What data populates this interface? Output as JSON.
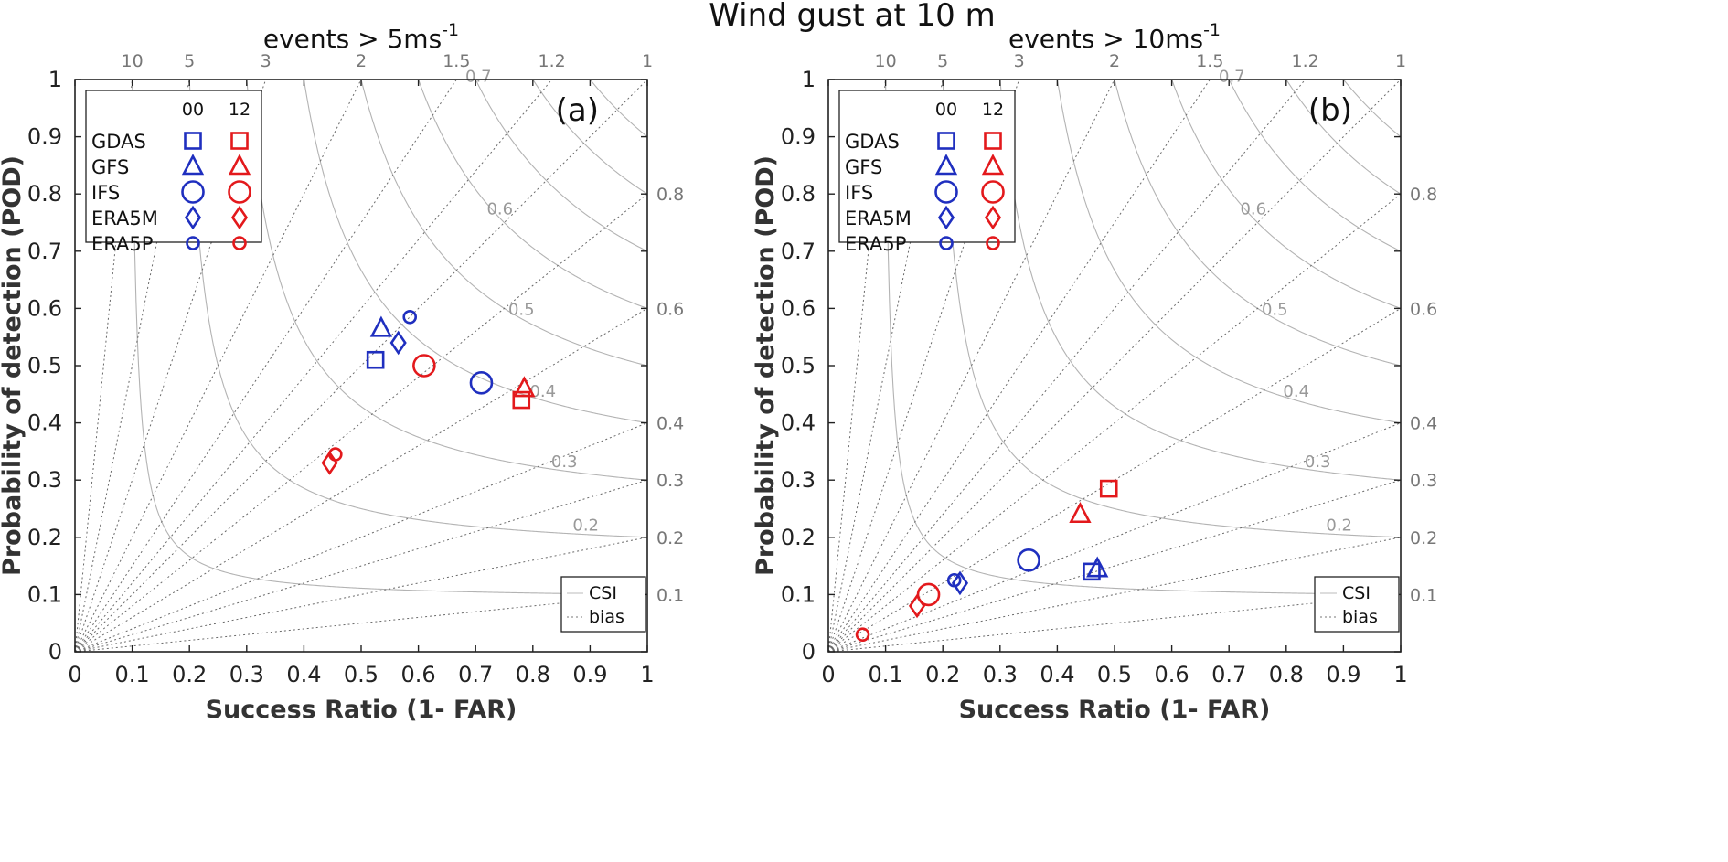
{
  "title": "Wind gust at 10 m",
  "colors": {
    "run00": "#1f2fbf",
    "run12": "#e3191c",
    "grid": "#9a9a9a"
  },
  "legend": {
    "col_headers": [
      "00",
      "12"
    ],
    "models": [
      {
        "name": "GDAS",
        "marker": "square"
      },
      {
        "name": "GFS",
        "marker": "triangle"
      },
      {
        "name": "IFS",
        "marker": "circle-large"
      },
      {
        "name": "ERA5M",
        "marker": "diamond"
      },
      {
        "name": "ERA5P",
        "marker": "circle-small"
      }
    ],
    "lines": [
      "CSI",
      "bias"
    ]
  },
  "chart_data": [
    {
      "type": "scatter",
      "panel_label": "(a)",
      "top_label": "events  > 5ms-1",
      "xlabel": "Success Ratio (1- FAR)",
      "ylabel": "Probability of detection (POD)",
      "xlim": [
        0,
        1
      ],
      "ylim": [
        0,
        1
      ],
      "xticks": [
        "0",
        "0.1",
        "0.2",
        "0.3",
        "0.4",
        "0.5",
        "0.6",
        "0.7",
        "0.8",
        "0.9",
        "1"
      ],
      "yticks": [
        "0",
        "0.1",
        "0.2",
        "0.3",
        "0.4",
        "0.5",
        "0.6",
        "0.7",
        "0.8",
        "0.9",
        "1"
      ],
      "bias_lines": [
        0.1,
        0.2,
        0.3,
        0.4,
        0.6,
        0.8,
        1,
        1.2,
        1.5,
        2,
        3,
        5,
        10
      ],
      "bias_top_labels": [
        "10",
        "5",
        "3",
        "2",
        "1.5",
        "1.2",
        "1"
      ],
      "bias_right_labels": [
        "0.8",
        "0.6",
        "0.4",
        "0.3",
        "0.2",
        "0.1"
      ],
      "csi_contours": [
        0.1,
        0.2,
        0.3,
        0.4,
        0.5,
        0.6,
        0.7,
        0.8,
        0.9
      ],
      "series": [
        {
          "name": "GDAS 00",
          "marker": "square",
          "run": "00",
          "x": 0.525,
          "y": 0.51
        },
        {
          "name": "GFS 00",
          "marker": "triangle",
          "run": "00",
          "x": 0.535,
          "y": 0.565
        },
        {
          "name": "IFS 00",
          "marker": "circle-large",
          "run": "00",
          "x": 0.71,
          "y": 0.47
        },
        {
          "name": "ERA5M 00",
          "marker": "diamond",
          "run": "00",
          "x": 0.565,
          "y": 0.54
        },
        {
          "name": "ERA5P 00",
          "marker": "circle-small",
          "run": "00",
          "x": 0.585,
          "y": 0.585
        },
        {
          "name": "GDAS 12",
          "marker": "square",
          "run": "12",
          "x": 0.78,
          "y": 0.44
        },
        {
          "name": "GFS 12",
          "marker": "triangle",
          "run": "12",
          "x": 0.785,
          "y": 0.46
        },
        {
          "name": "IFS 12",
          "marker": "circle-large",
          "run": "12",
          "x": 0.61,
          "y": 0.5
        },
        {
          "name": "ERA5M 12",
          "marker": "diamond",
          "run": "12",
          "x": 0.445,
          "y": 0.33
        },
        {
          "name": "ERA5P 12",
          "marker": "circle-small",
          "run": "12",
          "x": 0.455,
          "y": 0.345
        }
      ]
    },
    {
      "type": "scatter",
      "panel_label": "(b)",
      "top_label": "events  > 10ms-1",
      "xlabel": "Success Ratio (1- FAR)",
      "ylabel": "Probability of detection (POD)",
      "xlim": [
        0,
        1
      ],
      "ylim": [
        0,
        1
      ],
      "xticks": [
        "0",
        "0.1",
        "0.2",
        "0.3",
        "0.4",
        "0.5",
        "0.6",
        "0.7",
        "0.8",
        "0.9",
        "1"
      ],
      "yticks": [
        "0",
        "0.1",
        "0.2",
        "0.3",
        "0.4",
        "0.5",
        "0.6",
        "0.7",
        "0.8",
        "0.9",
        "1"
      ],
      "bias_lines": [
        0.1,
        0.2,
        0.3,
        0.4,
        0.6,
        0.8,
        1,
        1.2,
        1.5,
        2,
        3,
        5,
        10
      ],
      "bias_top_labels": [
        "10",
        "5",
        "3",
        "2",
        "1.5",
        "1.2",
        "1"
      ],
      "bias_right_labels": [
        "0.8",
        "0.6",
        "0.4",
        "0.3",
        "0.2",
        "0.1"
      ],
      "csi_contours": [
        0.1,
        0.2,
        0.3,
        0.4,
        0.5,
        0.6,
        0.7,
        0.8,
        0.9
      ],
      "series": [
        {
          "name": "GDAS 00",
          "marker": "square",
          "run": "00",
          "x": 0.46,
          "y": 0.14
        },
        {
          "name": "GFS 00",
          "marker": "triangle",
          "run": "00",
          "x": 0.47,
          "y": 0.145
        },
        {
          "name": "IFS 00",
          "marker": "circle-large",
          "run": "00",
          "x": 0.35,
          "y": 0.16
        },
        {
          "name": "ERA5M 00",
          "marker": "diamond",
          "run": "00",
          "x": 0.23,
          "y": 0.12
        },
        {
          "name": "ERA5P 00",
          "marker": "circle-small",
          "run": "00",
          "x": 0.22,
          "y": 0.125
        },
        {
          "name": "GDAS 12",
          "marker": "square",
          "run": "12",
          "x": 0.49,
          "y": 0.285
        },
        {
          "name": "GFS 12",
          "marker": "triangle",
          "run": "12",
          "x": 0.44,
          "y": 0.24
        },
        {
          "name": "IFS 12",
          "marker": "circle-large",
          "run": "12",
          "x": 0.175,
          "y": 0.1
        },
        {
          "name": "ERA5M 12",
          "marker": "diamond",
          "run": "12",
          "x": 0.155,
          "y": 0.08
        },
        {
          "name": "ERA5P 12",
          "marker": "circle-small",
          "run": "12",
          "x": 0.06,
          "y": 0.03
        }
      ]
    }
  ]
}
